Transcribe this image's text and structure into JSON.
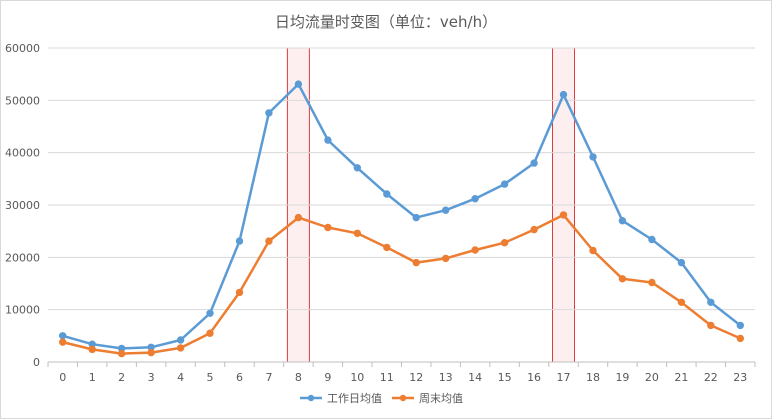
{
  "chart_data": {
    "type": "line",
    "title": "日均流量时变图（单位：veh/h）",
    "xlabel": "",
    "ylabel": "",
    "categories": [
      "0",
      "1",
      "2",
      "3",
      "4",
      "5",
      "6",
      "7",
      "8",
      "9",
      "10",
      "11",
      "12",
      "13",
      "14",
      "15",
      "16",
      "17",
      "18",
      "19",
      "20",
      "21",
      "22",
      "23"
    ],
    "ylim": [
      0,
      60000
    ],
    "yticks": [
      0,
      10000,
      20000,
      30000,
      40000,
      50000,
      60000
    ],
    "grid": true,
    "legend_position": "bottom",
    "highlight_categories": [
      "8",
      "17"
    ],
    "series": [
      {
        "name": "工作日均值",
        "color": "#5b9bd5",
        "values": [
          5000,
          3400,
          2600,
          2800,
          4200,
          9300,
          23100,
          47600,
          53100,
          42400,
          37100,
          32100,
          27600,
          29000,
          31200,
          34000,
          38000,
          51100,
          39200,
          27000,
          23400,
          19000,
          11400,
          7000
        ]
      },
      {
        "name": "周末均值",
        "color": "#ed7d31",
        "values": [
          3800,
          2400,
          1600,
          1800,
          2700,
          5500,
          13300,
          23100,
          27600,
          25700,
          24600,
          21900,
          19000,
          19800,
          21400,
          22800,
          25300,
          28100,
          21300,
          15900,
          15200,
          11400,
          7000,
          4500
        ]
      }
    ]
  }
}
